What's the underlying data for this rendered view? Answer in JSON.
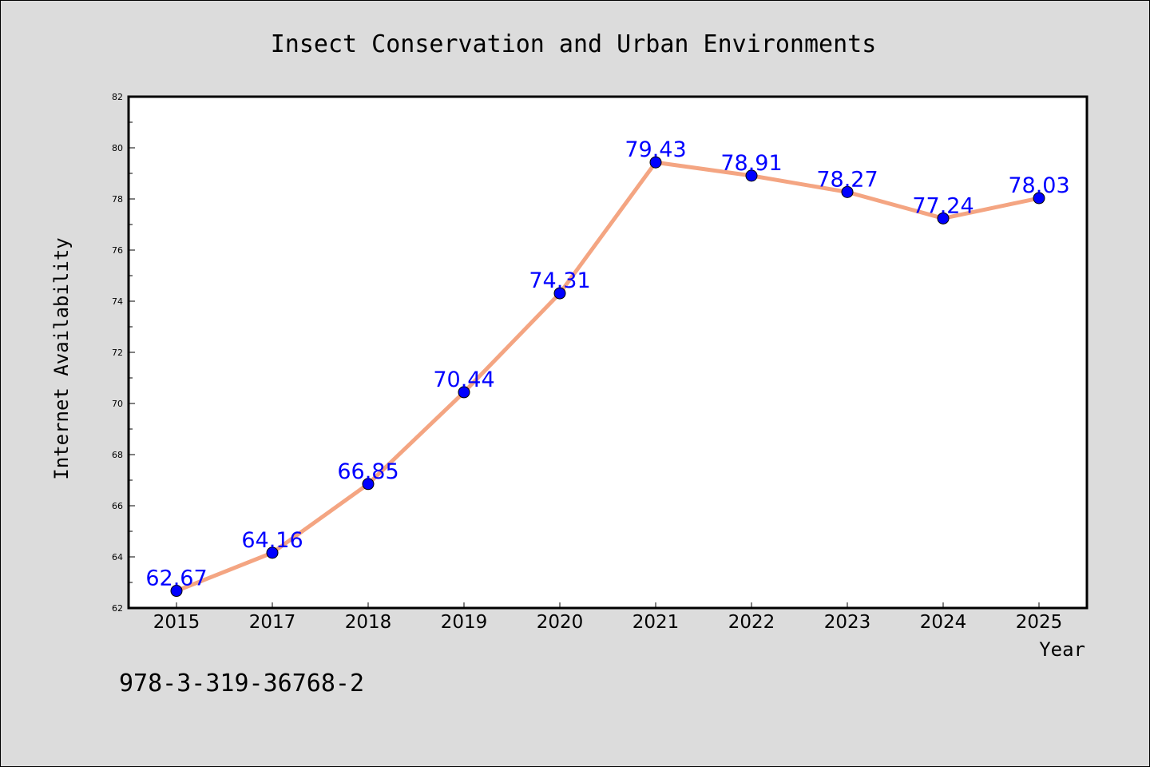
{
  "chart_data": {
    "type": "line",
    "title": "Insect Conservation and Urban Environments",
    "xlabel": "Year",
    "ylabel": "Internet Availability",
    "categories": [
      "2015",
      "2017",
      "2018",
      "2019",
      "2020",
      "2021",
      "2022",
      "2023",
      "2024",
      "2025"
    ],
    "series": [
      {
        "values": [
          62.67,
          64.16,
          66.85,
          70.44,
          74.31,
          79.43,
          78.91,
          78.27,
          77.24,
          78.03
        ],
        "labels": [
          "62.67",
          "64.16",
          "66.85",
          "70.44",
          "74.31",
          "79.43",
          "78.91",
          "78.27",
          "77.24",
          "78.03"
        ],
        "line_color": "#f4a582",
        "marker_color": "#0000ff"
      }
    ],
    "ylim": [
      62,
      82
    ],
    "yticks": [
      62,
      64,
      66,
      68,
      70,
      72,
      74,
      76,
      78,
      80,
      82
    ],
    "ytick_labels": [
      "62",
      "64",
      "66",
      "68",
      "70",
      "72",
      "74",
      "76",
      "78",
      "80",
      "82"
    ],
    "grid": false,
    "legend": "none",
    "annotation": "978-3-319-36768-2",
    "colors": {
      "background": "#dcdcdc",
      "plot_background": "#ffffff",
      "label_color": "#0000ff"
    }
  }
}
